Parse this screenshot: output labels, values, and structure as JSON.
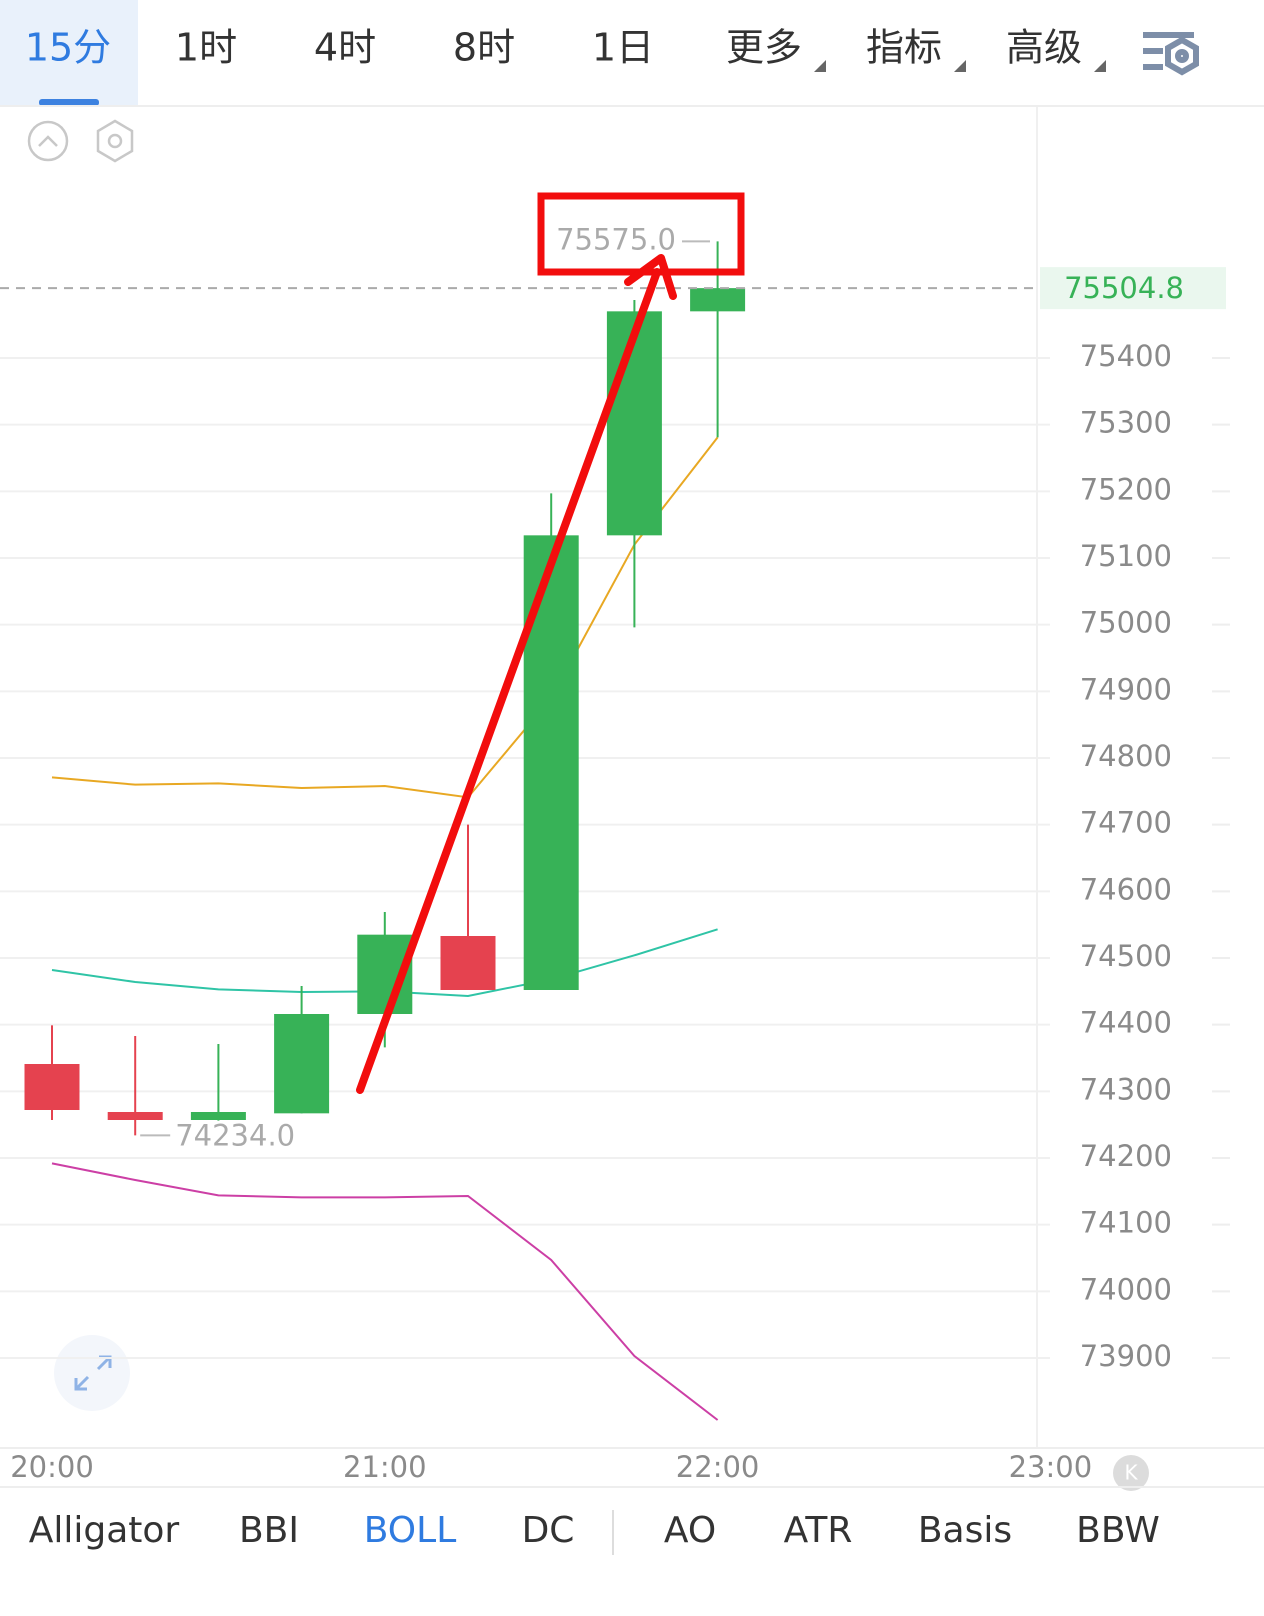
{
  "tabs": [
    "15分",
    "1时",
    "4时",
    "8时",
    "1日",
    "更多",
    "指标",
    "高级"
  ],
  "indicators": [
    "Alligator",
    "BBI",
    "BOLL",
    "DC",
    "AO",
    "ATR",
    "Basis",
    "BBW"
  ],
  "chart_data": {
    "type": "candlestick",
    "open": [
      74341,
      74269,
      74257,
      74267,
      74416,
      74533,
      74452,
      75134,
      75470
    ],
    "high": [
      74399,
      74383,
      74371,
      74458,
      74569,
      74700,
      75197,
      75487,
      75575
    ],
    "low": [
      74257,
      74234,
      74256,
      74267,
      74366,
      74452,
      74452,
      74996,
      75281
    ],
    "close": [
      74272,
      74257,
      74269,
      74416,
      74535,
      74452,
      75134,
      75470,
      75504.8
    ],
    "up_color": "#37b257",
    "down_color": "#e5424f",
    "high_label": "75575.0",
    "low_label": "74234.0",
    "series": [
      {
        "color": "#e8a823",
        "values": [
          74771,
          74760,
          74762,
          74755,
          74758,
          74741,
          74890,
          75120,
          75281
        ]
      },
      {
        "color": "#2fc4a6",
        "values": [
          74482,
          74464,
          74453,
          74449,
          74450,
          74443,
          74468,
          74504,
          74543
        ]
      },
      {
        "color": "#cc3fa5",
        "values": [
          74192,
          74167,
          74144,
          74141,
          74141,
          74143,
          74047,
          73903,
          73807
        ]
      }
    ],
    "xticks": [
      "20:00",
      "21:00",
      "22:00",
      "23:00"
    ],
    "ylim": [
      73765,
      75776.5
    ],
    "yticks": [
      73900,
      74000,
      74100,
      74200,
      74300,
      74400,
      74500,
      74600,
      74700,
      74800,
      74900,
      75000,
      75100,
      75200,
      75300,
      75400
    ],
    "grid": true
  }
}
